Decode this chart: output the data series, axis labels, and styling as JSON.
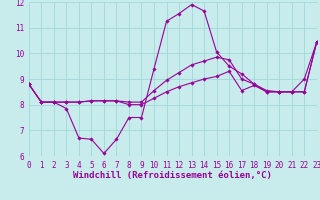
{
  "xlabel": "Windchill (Refroidissement éolien,°C)",
  "bg_color": "#c8ecec",
  "grid_color": "#a0d8d8",
  "line_color": "#990099",
  "xlim": [
    0,
    23
  ],
  "ylim": [
    6,
    12
  ],
  "yticks": [
    6,
    7,
    8,
    9,
    10,
    11,
    12
  ],
  "xticks": [
    0,
    1,
    2,
    3,
    4,
    5,
    6,
    7,
    8,
    9,
    10,
    11,
    12,
    13,
    14,
    15,
    16,
    17,
    18,
    19,
    20,
    21,
    22,
    23
  ],
  "series1_x": [
    0,
    1,
    2,
    3,
    4,
    5,
    6,
    7,
    8,
    9,
    10,
    11,
    12,
    13,
    14,
    15,
    16,
    17,
    18,
    19,
    20,
    21,
    22,
    23
  ],
  "series1_y": [
    8.8,
    8.1,
    8.1,
    7.85,
    6.7,
    6.65,
    6.1,
    6.65,
    7.5,
    7.5,
    9.4,
    11.25,
    11.55,
    11.9,
    11.65,
    10.05,
    9.5,
    9.2,
    8.8,
    8.5,
    8.5,
    8.5,
    9.0,
    10.45
  ],
  "series2_x": [
    0,
    1,
    2,
    3,
    4,
    5,
    6,
    7,
    8,
    9,
    10,
    11,
    12,
    13,
    14,
    15,
    16,
    17,
    18,
    19,
    20,
    21,
    22,
    23
  ],
  "series2_y": [
    8.8,
    8.1,
    8.1,
    8.1,
    8.1,
    8.15,
    8.15,
    8.15,
    8.1,
    8.1,
    8.55,
    8.95,
    9.25,
    9.55,
    9.7,
    9.85,
    9.75,
    9.0,
    8.8,
    8.55,
    8.5,
    8.5,
    8.5,
    10.45
  ],
  "series3_x": [
    0,
    1,
    2,
    3,
    4,
    5,
    6,
    7,
    8,
    9,
    10,
    11,
    12,
    13,
    14,
    15,
    16,
    17,
    18,
    19,
    20,
    21,
    22,
    23
  ],
  "series3_y": [
    8.8,
    8.1,
    8.1,
    8.1,
    8.1,
    8.15,
    8.15,
    8.15,
    8.0,
    8.0,
    8.25,
    8.5,
    8.7,
    8.85,
    9.0,
    9.1,
    9.3,
    8.55,
    8.75,
    8.5,
    8.5,
    8.5,
    8.5,
    10.45
  ],
  "tick_color": "#990099",
  "tick_fontsize": 5.5,
  "xlabel_fontsize": 6.5
}
